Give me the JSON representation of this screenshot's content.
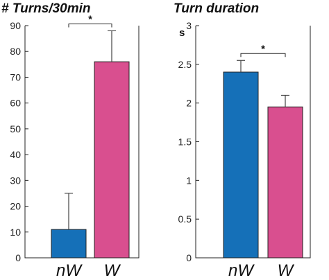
{
  "chart_data": [
    {
      "type": "bar",
      "title": "# Turns/30min",
      "ylabel": "",
      "ylim": [
        0,
        90
      ],
      "yticks": [
        "0",
        "10",
        "20",
        "30",
        "40",
        "50",
        "60",
        "70",
        "80",
        "90"
      ],
      "categories": [
        "nW",
        "W"
      ],
      "values": [
        11,
        76
      ],
      "errors": [
        14,
        12
      ],
      "colors": [
        "#1570b8",
        "#d94f8f"
      ],
      "significance": "*"
    },
    {
      "type": "bar",
      "title": "Turn duration",
      "ylabel": "s",
      "ylim": [
        0,
        3
      ],
      "yticks": [
        "0",
        "0.5",
        "1",
        "1.5",
        "2",
        "2.5",
        "3"
      ],
      "categories": [
        "nW",
        "W"
      ],
      "values": [
        2.4,
        1.95
      ],
      "errors": [
        0.15,
        0.15
      ],
      "colors": [
        "#1570b8",
        "#d94f8f"
      ],
      "significance": "*"
    }
  ]
}
